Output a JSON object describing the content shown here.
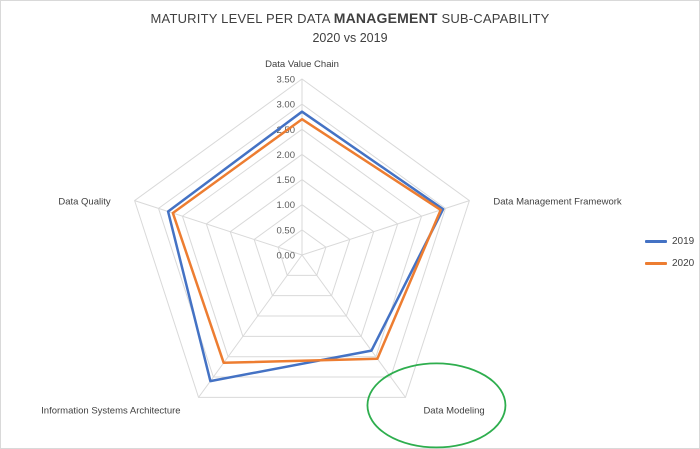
{
  "chart_data": {
    "type": "radar",
    "title": {
      "prefix": "MATURITY LEVEL PER DATA ",
      "emphasis": "MANAGEMENT",
      "suffix": " SUB-CAPABILITY"
    },
    "subtitle": "2020 vs 2019",
    "categories": [
      "Data Value Chain",
      "Data Management Framework",
      "Data Modeling",
      "Information Systems Architecture",
      "Data Quality"
    ],
    "rlim": [
      0,
      3.5
    ],
    "ticks": [
      "0.00",
      "0.50",
      "1.00",
      "1.50",
      "2.00",
      "2.50",
      "3.00",
      "3.50"
    ],
    "tick_values": [
      0,
      0.5,
      1.0,
      1.5,
      2.0,
      2.5,
      3.0,
      3.5
    ],
    "series": [
      {
        "name": "2019",
        "color": "#4472C4",
        "values": [
          2.85,
          2.95,
          2.35,
          3.1,
          2.8
        ]
      },
      {
        "name": "2020",
        "color": "#ED7D31",
        "values": [
          2.7,
          2.9,
          2.55,
          2.65,
          2.7
        ]
      }
    ],
    "legend_position": "right",
    "grid": true,
    "annotation": {
      "type": "ellipse",
      "color": "#2EAE4E",
      "target": "Data Modeling"
    }
  }
}
